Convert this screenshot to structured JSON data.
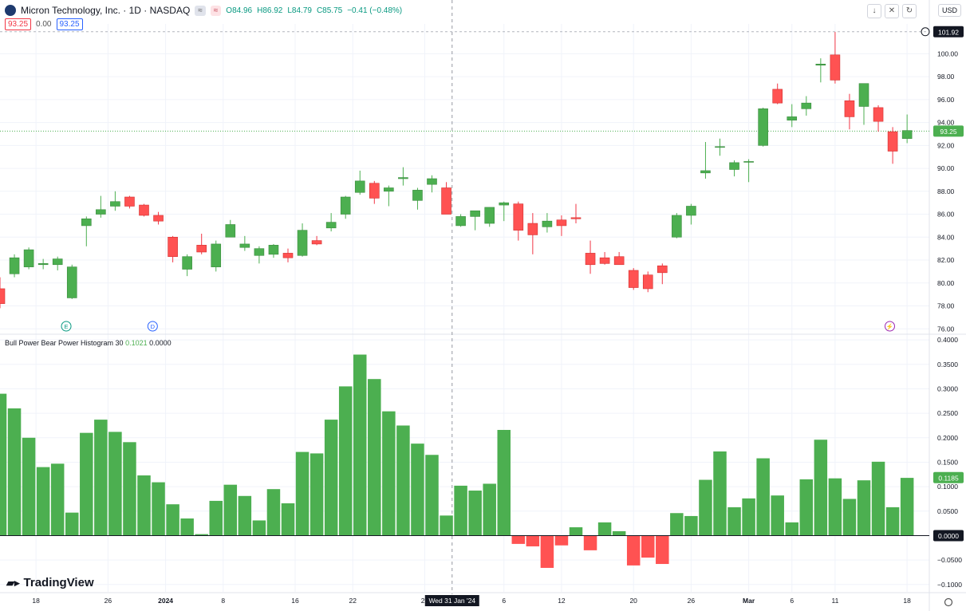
{
  "header": {
    "symbol": "Micron Technology, Inc. · 1D · NASDAQ",
    "btn1": "≈",
    "btn2": "≈",
    "o": "O84.96",
    "h": "H86.92",
    "l": "L84.79",
    "c": "C85.75",
    "chg": "−0.41 (−0.48%)",
    "sell": "93.25",
    "spread": "0.00",
    "buy": "93.25",
    "currency": "USD",
    "toolbar_icons": [
      "arrow-down-icon",
      "expand-icon",
      "refresh-icon"
    ]
  },
  "indicator": {
    "name": "Bull Power Bear Power Histogram 30",
    "v1": "0.1021",
    "v2": "0.0000"
  },
  "crosshair_label": "Wed 31 Jan '24",
  "brand": "TradingView",
  "colors": {
    "up": "#4caf50",
    "down": "#ff5252",
    "grid": "#f0f3fa",
    "text": "#131722"
  },
  "chart_data": [
    {
      "type": "candlestick",
      "title": "Micron Technology, Inc. · 1D · NASDAQ",
      "ylim": [
        75.6,
        102.6
      ],
      "y_ticks": [
        76.0,
        78.0,
        80.0,
        82.0,
        84.0,
        86.0,
        88.0,
        90.0,
        92.0,
        94.0,
        96.0,
        98.0,
        100.0
      ],
      "high_label": "101.92",
      "last_price": "93.25",
      "x_tick_labels": [
        "18",
        "26",
        "2024",
        "8",
        "16",
        "22",
        "29",
        "6",
        "12",
        "20",
        "26",
        "Mar",
        "6",
        "11",
        "18"
      ],
      "event_markers": [
        "E",
        "D",
        "⚡"
      ],
      "candles": [
        {
          "o": 79.5,
          "h": 80.5,
          "l": 77.8,
          "c": 78.2
        },
        {
          "o": 80.8,
          "h": 82.5,
          "l": 80.5,
          "c": 82.2
        },
        {
          "o": 81.4,
          "h": 83.1,
          "l": 81.2,
          "c": 82.9
        },
        {
          "o": 81.6,
          "h": 82.1,
          "l": 81.2,
          "c": 81.7
        },
        {
          "o": 81.6,
          "h": 82.3,
          "l": 81.1,
          "c": 82.1
        },
        {
          "o": 78.7,
          "h": 81.6,
          "l": 78.6,
          "c": 81.4
        },
        {
          "o": 85.0,
          "h": 85.8,
          "l": 83.2,
          "c": 85.6
        },
        {
          "o": 86.0,
          "h": 87.6,
          "l": 85.7,
          "c": 86.4
        },
        {
          "o": 86.7,
          "h": 88.0,
          "l": 86.3,
          "c": 87.1
        },
        {
          "o": 87.5,
          "h": 87.6,
          "l": 86.5,
          "c": 86.7
        },
        {
          "o": 86.8,
          "h": 86.9,
          "l": 85.8,
          "c": 85.9
        },
        {
          "o": 85.9,
          "h": 86.2,
          "l": 85.1,
          "c": 85.4
        },
        {
          "o": 84.0,
          "h": 84.1,
          "l": 81.8,
          "c": 82.3
        },
        {
          "o": 81.2,
          "h": 82.5,
          "l": 80.6,
          "c": 82.3
        },
        {
          "o": 83.3,
          "h": 84.3,
          "l": 82.5,
          "c": 82.7
        },
        {
          "o": 81.4,
          "h": 83.7,
          "l": 81.0,
          "c": 83.4
        },
        {
          "o": 84.0,
          "h": 85.5,
          "l": 84.0,
          "c": 85.1
        },
        {
          "o": 83.1,
          "h": 84.1,
          "l": 82.8,
          "c": 83.4
        },
        {
          "o": 82.4,
          "h": 83.2,
          "l": 81.7,
          "c": 83.0
        },
        {
          "o": 82.5,
          "h": 83.4,
          "l": 82.2,
          "c": 83.3
        },
        {
          "o": 82.6,
          "h": 83.0,
          "l": 81.8,
          "c": 82.2
        },
        {
          "o": 82.4,
          "h": 85.2,
          "l": 82.3,
          "c": 84.6
        },
        {
          "o": 83.7,
          "h": 84.1,
          "l": 83.3,
          "c": 83.4
        },
        {
          "o": 84.8,
          "h": 86.1,
          "l": 84.5,
          "c": 85.3
        },
        {
          "o": 86.0,
          "h": 87.6,
          "l": 85.6,
          "c": 87.5
        },
        {
          "o": 87.9,
          "h": 89.8,
          "l": 87.7,
          "c": 88.9
        },
        {
          "o": 88.7,
          "h": 88.9,
          "l": 86.9,
          "c": 87.4
        },
        {
          "o": 88.0,
          "h": 88.5,
          "l": 86.7,
          "c": 88.3
        },
        {
          "o": 89.1,
          "h": 90.1,
          "l": 88.5,
          "c": 89.2
        },
        {
          "o": 87.2,
          "h": 88.3,
          "l": 86.4,
          "c": 88.1
        },
        {
          "o": 88.6,
          "h": 89.4,
          "l": 87.9,
          "c": 89.1
        },
        {
          "o": 88.3,
          "h": 88.8,
          "l": 86.1,
          "c": 86.0
        },
        {
          "o": 85.0,
          "h": 86.0,
          "l": 84.9,
          "c": 85.8
        },
        {
          "o": 85.8,
          "h": 86.3,
          "l": 84.6,
          "c": 86.3
        },
        {
          "o": 85.2,
          "h": 86.6,
          "l": 84.9,
          "c": 86.6
        },
        {
          "o": 86.8,
          "h": 87.1,
          "l": 85.4,
          "c": 87.0
        },
        {
          "o": 86.9,
          "h": 87.1,
          "l": 83.7,
          "c": 84.6
        },
        {
          "o": 85.2,
          "h": 86.1,
          "l": 82.5,
          "c": 84.2
        },
        {
          "o": 84.9,
          "h": 86.1,
          "l": 84.4,
          "c": 85.4
        },
        {
          "o": 85.5,
          "h": 85.9,
          "l": 84.1,
          "c": 85.0
        },
        {
          "o": 85.7,
          "h": 86.9,
          "l": 85.2,
          "c": 85.6
        },
        {
          "o": 82.6,
          "h": 83.7,
          "l": 80.8,
          "c": 81.6
        },
        {
          "o": 82.2,
          "h": 82.7,
          "l": 81.6,
          "c": 81.7
        },
        {
          "o": 82.3,
          "h": 82.7,
          "l": 81.6,
          "c": 81.6
        },
        {
          "o": 81.1,
          "h": 81.3,
          "l": 79.4,
          "c": 79.6
        },
        {
          "o": 80.7,
          "h": 81.0,
          "l": 79.2,
          "c": 79.5
        },
        {
          "o": 81.5,
          "h": 81.7,
          "l": 79.9,
          "c": 80.9
        },
        {
          "o": 84.0,
          "h": 86.1,
          "l": 83.9,
          "c": 85.9
        },
        {
          "o": 85.9,
          "h": 86.9,
          "l": 85.1,
          "c": 86.7
        },
        {
          "o": 89.6,
          "h": 92.3,
          "l": 89.1,
          "c": 89.8
        },
        {
          "o": 91.9,
          "h": 92.6,
          "l": 91.1,
          "c": 91.9
        },
        {
          "o": 89.9,
          "h": 90.7,
          "l": 89.3,
          "c": 90.5
        },
        {
          "o": 90.6,
          "h": 90.8,
          "l": 88.8,
          "c": 90.6
        },
        {
          "o": 92.0,
          "h": 95.3,
          "l": 91.9,
          "c": 95.2
        },
        {
          "o": 96.9,
          "h": 97.4,
          "l": 95.6,
          "c": 95.7
        },
        {
          "o": 94.2,
          "h": 95.6,
          "l": 93.6,
          "c": 94.5
        },
        {
          "o": 95.2,
          "h": 96.3,
          "l": 94.6,
          "c": 95.7
        },
        {
          "o": 99.0,
          "h": 99.6,
          "l": 97.5,
          "c": 99.1
        },
        {
          "o": 99.9,
          "h": 101.9,
          "l": 97.4,
          "c": 97.7
        },
        {
          "o": 95.9,
          "h": 96.5,
          "l": 93.4,
          "c": 94.5
        },
        {
          "o": 95.4,
          "h": 97.4,
          "l": 93.8,
          "c": 97.4
        },
        {
          "o": 95.3,
          "h": 95.5,
          "l": 93.2,
          "c": 94.1
        },
        {
          "o": 93.2,
          "h": 93.6,
          "l": 90.4,
          "c": 91.5
        },
        {
          "o": 92.6,
          "h": 94.7,
          "l": 92.2,
          "c": 93.3
        }
      ]
    },
    {
      "type": "bar",
      "title": "Bull Power Bear Power Histogram 30",
      "ylim": [
        -0.115,
        0.41
      ],
      "y_ticks": [
        -0.1,
        -0.05,
        0.0,
        0.05,
        0.1,
        0.15,
        0.2,
        0.25,
        0.3,
        0.35,
        0.4
      ],
      "last_value": "0.1185",
      "zero_label": "0.0000",
      "values": [
        0.29,
        0.26,
        0.2,
        0.14,
        0.147,
        0.047,
        0.21,
        0.237,
        0.212,
        0.191,
        0.123,
        0.109,
        0.064,
        0.035,
        0.003,
        0.071,
        0.104,
        0.081,
        0.031,
        0.095,
        0.066,
        0.171,
        0.168,
        0.237,
        0.305,
        0.37,
        0.32,
        0.254,
        0.225,
        0.188,
        0.165,
        0.041,
        0.102,
        0.092,
        0.106,
        0.216,
        -0.017,
        -0.022,
        -0.066,
        -0.02,
        0.017,
        -0.03,
        0.027,
        0.009,
        -0.061,
        -0.045,
        -0.058,
        0.046,
        0.04,
        0.114,
        0.172,
        0.058,
        0.076,
        0.158,
        0.082,
        0.027,
        0.115,
        0.196,
        0.117,
        0.075,
        0.113,
        0.151,
        0.058,
        0.118
      ]
    }
  ]
}
